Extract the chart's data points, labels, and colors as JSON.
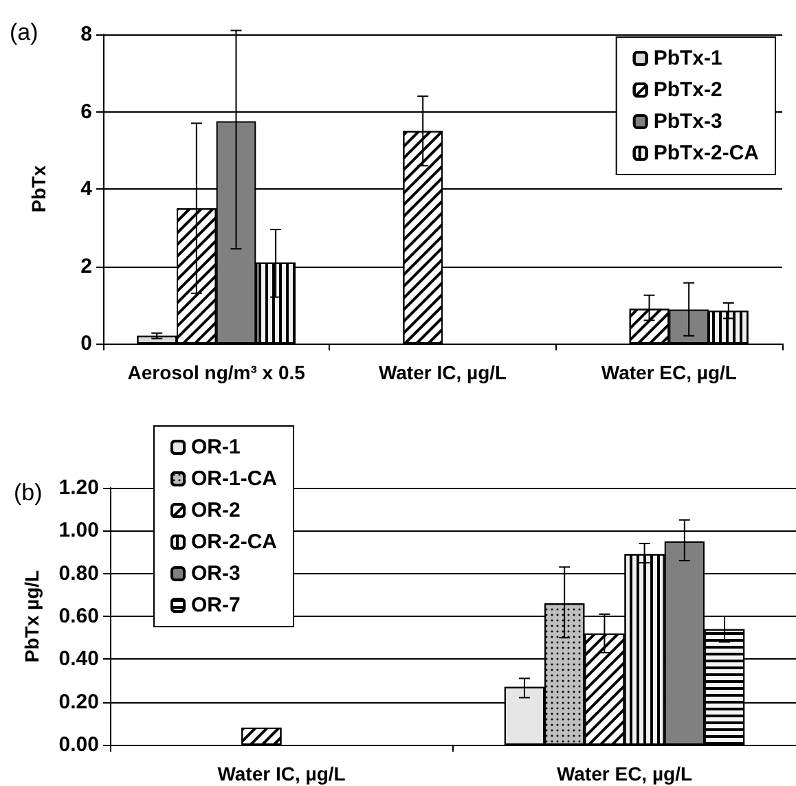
{
  "chart_data": [
    {
      "type": "bar",
      "title": "(a)",
      "ylabel": "PbTx",
      "categories": [
        "Aerosol ng/m³ x 0.5",
        "Water IC, µg/L",
        "Water EC, µg/L"
      ],
      "series": [
        {
          "name": "PbTx-1",
          "color": "#d9d9d9",
          "values": [
            0.2,
            null,
            null
          ],
          "errors": [
            [
              0.13,
              0.27
            ],
            null,
            null
          ]
        },
        {
          "name": "PbTx-2",
          "color": "#ffffff",
          "values": [
            3.5,
            5.5,
            0.9
          ],
          "errors": [
            [
              1.3,
              5.7
            ],
            [
              4.6,
              6.4
            ],
            [
              0.6,
              1.25
            ]
          ]
        },
        {
          "name": "PbTx-3",
          "color": "#808080",
          "values": [
            5.75,
            null,
            0.88
          ],
          "errors": [
            [
              2.45,
              8.1
            ],
            null,
            [
              0.2,
              1.57
            ]
          ]
        },
        {
          "name": "PbTx-2-CA",
          "color": "#f0f0f0",
          "values": [
            2.1,
            null,
            0.85
          ],
          "errors": [
            [
              1.2,
              2.95
            ],
            null,
            [
              0.65,
              1.05
            ]
          ]
        }
      ],
      "ylim": [
        0,
        8
      ],
      "yticks": [
        0,
        2,
        4,
        6,
        8
      ],
      "grid": "y",
      "legend": "top right"
    },
    {
      "type": "bar",
      "title": "(b)",
      "ylabel": "PbTx µg/L",
      "categories": [
        "Water IC, µg/L",
        "Water EC, µg/L"
      ],
      "series": [
        {
          "name": "OR-1",
          "color": "#e6e6e6",
          "values": [
            null,
            0.27
          ],
          "errors": [
            null,
            [
              0.22,
              0.31
            ]
          ]
        },
        {
          "name": "OR-1-CA",
          "color": "#bfbfbf",
          "values": [
            null,
            0.66
          ],
          "errors": [
            null,
            [
              0.5,
              0.83
            ]
          ]
        },
        {
          "name": "OR-2",
          "color": "#ffffff",
          "values": [
            0.08,
            0.52
          ],
          "errors": [
            null,
            [
              0.43,
              0.61
            ]
          ]
        },
        {
          "name": "OR-2-CA",
          "color": "#f0f0f0",
          "values": [
            null,
            0.89
          ],
          "errors": [
            null,
            [
              0.85,
              0.94
            ]
          ]
        },
        {
          "name": "OR-3",
          "color": "#808080",
          "values": [
            null,
            0.95
          ],
          "errors": [
            null,
            [
              0.86,
              1.05
            ]
          ]
        },
        {
          "name": "OR-7",
          "color": "#f5f5f5",
          "values": [
            null,
            0.54
          ],
          "errors": [
            null,
            [
              0.48,
              0.6
            ]
          ]
        }
      ],
      "ylim": [
        0,
        1.2
      ],
      "yticks": [
        {
          "value": 0,
          "label": "0.00"
        },
        {
          "value": 0.2,
          "label": "0.20"
        },
        {
          "value": 0.4,
          "label": "0.40"
        },
        {
          "value": 0.6,
          "label": "0.60"
        },
        {
          "value": 0.8,
          "label": "0.80"
        },
        {
          "value": 1,
          "label": "1.00"
        },
        {
          "value": 1.2,
          "label": "1.20"
        }
      ],
      "grid": "y",
      "legend": "top left"
    }
  ]
}
